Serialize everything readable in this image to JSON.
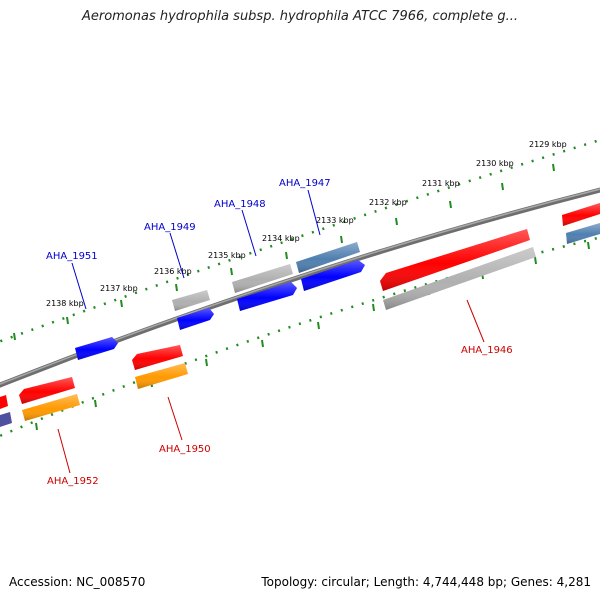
{
  "title": "Aeromonas hydrophila subsp. hydrophila ATCC 7966, complete g...",
  "footer": {
    "accession": "Accession: NC_008570",
    "summary": "Topology: circular; Length: 4,744,448 bp; Genes: 4,281"
  },
  "scale_labels": [
    "2129 kbp",
    "2130 kbp",
    "2131 kbp",
    "2132 kbp",
    "2133 kbp",
    "2134 kbp",
    "2135 kbp",
    "2136 kbp",
    "2137 kbp",
    "2138 kbp"
  ],
  "genes_top": [
    "AHA_1947",
    "AHA_1948",
    "AHA_1949",
    "AHA_1951"
  ],
  "genes_bottom": [
    "AHA_1946",
    "AHA_1950",
    "AHA_1952"
  ],
  "colors": {
    "label_top": "#0000cc",
    "label_bottom": "#cc0000",
    "backbone": "#808080",
    "tick": "#228b22",
    "red": "#ff0000",
    "blue": "#0000ff",
    "gray": "#b0b0b0",
    "steelblue": "#4f7fb0",
    "orange": "#ff9900",
    "purple": "#5050a0"
  }
}
